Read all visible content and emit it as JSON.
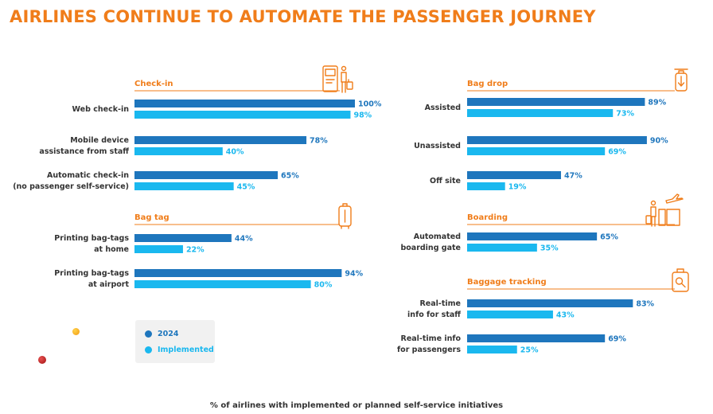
{
  "title": "AIRLINES CONTINUE TO AUTOMATE THE PASSENGER JOURNEY",
  "footnote": "% of airlines with implemented or planned self-service initiatives",
  "colors": {
    "series_2024": "#1e76bd",
    "series_implemented": "#1ab8ef",
    "accent": "#f07d1a",
    "text": "#333333"
  },
  "legend": [
    {
      "label": "2024",
      "color": "#1e76bd"
    },
    {
      "label": "Implemented",
      "color": "#1ab8ef"
    }
  ],
  "chart_data": {
    "type": "bar",
    "orientation": "horizontal",
    "unit": "%",
    "xlim": [
      0,
      100
    ],
    "grid": false,
    "series_names": [
      "2024",
      "Implemented"
    ],
    "groups": [
      {
        "title": "Check-in",
        "icon": "kiosk-traveler-icon",
        "categories": [
          {
            "label": [
              "Web check-in"
            ],
            "values": [
              100,
              98
            ]
          },
          {
            "label": [
              "Mobile device",
              "assistance from staff"
            ],
            "values": [
              78,
              40
            ]
          },
          {
            "label": [
              "Automatic check-in",
              "(no passenger self-service)"
            ],
            "values": [
              65,
              45
            ]
          }
        ]
      },
      {
        "title": "Bag tag",
        "icon": "luggage-tag-icon",
        "categories": [
          {
            "label": [
              "Printing bag-tags",
              "at home"
            ],
            "values": [
              44,
              22
            ]
          },
          {
            "label": [
              "Printing bag-tags",
              "at airport"
            ],
            "values": [
              94,
              80
            ]
          }
        ]
      },
      {
        "title": "Bag drop",
        "icon": "bag-drop-icon",
        "categories": [
          {
            "label": [
              "Assisted"
            ],
            "values": [
              89,
              73
            ]
          },
          {
            "label": [
              "Unassisted"
            ],
            "values": [
              90,
              69
            ]
          },
          {
            "label": [
              "Off site"
            ],
            "values": [
              47,
              19
            ]
          }
        ]
      },
      {
        "title": "Boarding",
        "icon": "boarding-plane-icon",
        "categories": [
          {
            "label": [
              "Automated",
              "boarding gate"
            ],
            "values": [
              65,
              35
            ]
          }
        ]
      },
      {
        "title": "Baggage tracking",
        "icon": "baggage-search-icon",
        "categories": [
          {
            "label": [
              "Real-time",
              "info for staff"
            ],
            "values": [
              83,
              43
            ]
          },
          {
            "label": [
              "Real-time info",
              "for passengers"
            ],
            "values": [
              69,
              25
            ]
          }
        ]
      }
    ]
  }
}
